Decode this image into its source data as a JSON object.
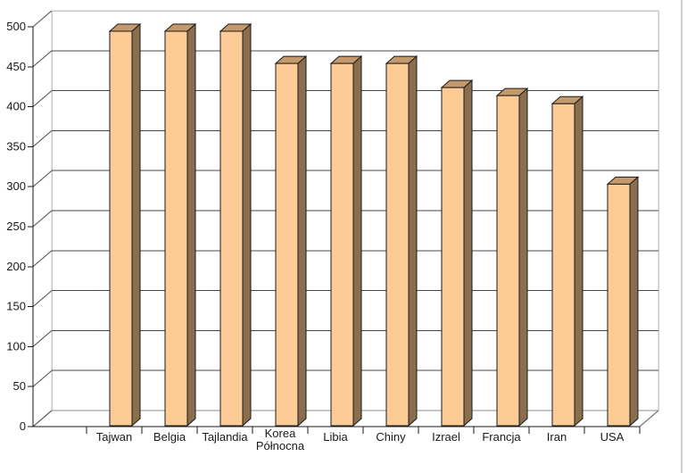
{
  "chart_data": {
    "type": "bar",
    "variant": "3d-column",
    "title": "",
    "xlabel": "",
    "ylabel": "",
    "categories": [
      "Tajwan",
      "Belgia",
      "Tajlandia",
      "Korea Północna",
      "Libia",
      "Chiny",
      "Izrael",
      "Francja",
      "Iran",
      "USA"
    ],
    "values": [
      490,
      490,
      490,
      450,
      450,
      450,
      420,
      410,
      400,
      300
    ],
    "ylim": [
      0,
      500
    ],
    "ytick_step": 50,
    "grid": true,
    "legend": false,
    "colors": {
      "bar_front": "#FCCB96",
      "bar_top": "#C49A6C",
      "bar_side": "#8A6E4E",
      "bar_outline": "#1A1A1A",
      "gridline": "#4A4A4A",
      "axis": "#1A1A1A",
      "wall_edge": "#C9C9C9",
      "floor_back_edge": "#8F8F8F",
      "floor_right_edge": "#777777",
      "label_text": "#1A1A1A",
      "frame_border": "#CFCFCF",
      "background": "#FFFFFF"
    }
  }
}
